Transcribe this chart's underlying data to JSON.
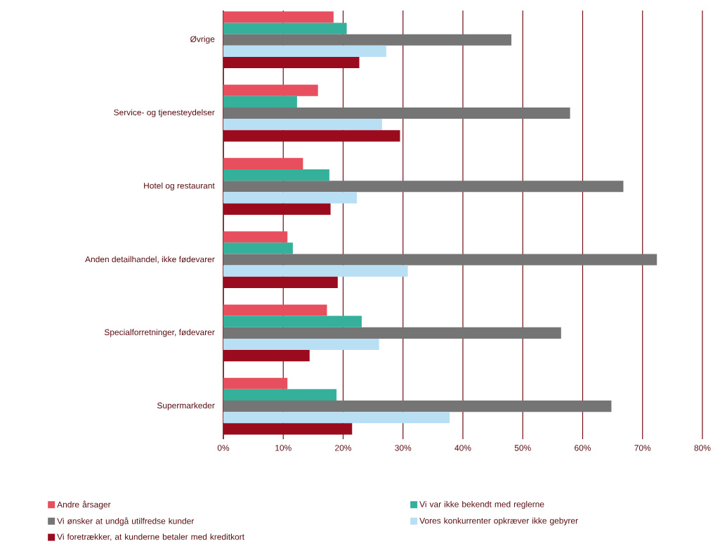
{
  "chart_data": {
    "type": "bar",
    "orientation": "horizontal",
    "categories": [
      "Øvrige",
      "Service- og tjenesteydelser",
      "Hotel og restaurant",
      "Anden detailhandel, ikke fødevarer",
      "Specialforretninger, fødevarer",
      "Supermarkeder"
    ],
    "series": [
      {
        "name": "Andre årsager",
        "color": "#e84f5e",
        "values": [
          18.4,
          15.8,
          13.3,
          10.7,
          17.3,
          10.7
        ]
      },
      {
        "name": "Vi var ikke bekendt med reglerne",
        "color": "#35b09a",
        "values": [
          20.6,
          12.3,
          17.7,
          11.6,
          23.1,
          18.9
        ]
      },
      {
        "name": "Vi ønsker at undgå utilfredse kunder",
        "color": "#757575",
        "values": [
          48.1,
          57.9,
          66.8,
          72.4,
          56.4,
          64.8
        ]
      },
      {
        "name": "Vores konkurrenter opkræver ikke gebyrer",
        "color": "#b8dff3",
        "values": [
          27.2,
          26.5,
          22.3,
          30.8,
          26.0,
          37.8
        ]
      },
      {
        "name": "Vi foretrækker, at kunderne betaler med kreditkort",
        "color": "#9b0b1e",
        "values": [
          22.7,
          29.5,
          17.9,
          19.1,
          14.4,
          21.5
        ]
      }
    ],
    "xlim": [
      0,
      80
    ],
    "xticks": [
      {
        "value": 0,
        "label": "0%"
      },
      {
        "value": 10,
        "label": "10%"
      },
      {
        "value": 20,
        "label": "20%"
      },
      {
        "value": 30,
        "label": "30%"
      },
      {
        "value": 40,
        "label": "40%"
      },
      {
        "value": 50,
        "label": "50%"
      },
      {
        "value": 60,
        "label": "60%"
      },
      {
        "value": 70,
        "label": "70%"
      },
      {
        "value": 80,
        "label": "80%"
      }
    ],
    "grid": "x",
    "legend": "bottom"
  }
}
